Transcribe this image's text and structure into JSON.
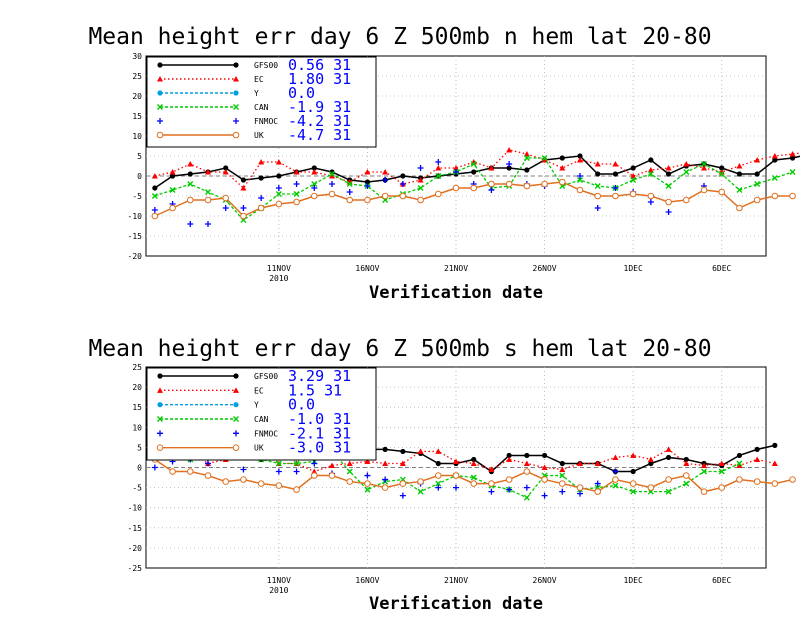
{
  "chart_data": [
    {
      "type": "line",
      "title": "Mean height err   day 6  Z 500mb  n hem  lat 20-80",
      "xlabel": "Verification date",
      "ylabel": "",
      "ylim": [
        -20,
        30
      ],
      "y_ticks": [
        -20,
        -15,
        -10,
        -5,
        0,
        5,
        10,
        15,
        20,
        25,
        30
      ],
      "x_tick_labels": [
        {
          "x": 8,
          "label": "11NOV",
          "sub": "2010"
        },
        {
          "x": 13,
          "label": "16NOV",
          "sub": ""
        },
        {
          "x": 18,
          "label": "21NOV",
          "sub": ""
        },
        {
          "x": 23,
          "label": "26NOV",
          "sub": ""
        },
        {
          "x": 28,
          "label": "1DEC",
          "sub": ""
        },
        {
          "x": 33,
          "label": "6DEC",
          "sub": ""
        }
      ],
      "grid": true,
      "legend_position": "top-left",
      "series": [
        {
          "name": "GFS00",
          "color": "#000000",
          "style": "solid",
          "marker": "dot",
          "legend_value": "0.56 31",
          "values": [
            -3,
            0,
            0.5,
            1,
            2,
            -1,
            -0.5,
            0,
            1,
            2,
            1,
            -1,
            -1.5,
            -1,
            0,
            -0.5,
            0,
            0.5,
            1,
            2,
            2,
            1.5,
            4,
            4.5,
            5,
            0.5,
            0.5,
            2,
            4,
            0.5,
            2.5,
            3,
            2,
            0.5,
            0.5,
            4,
            4.5,
            5.5
          ]
        },
        {
          "name": "EC",
          "color": "#ff0000",
          "style": "dotted",
          "marker": "triangle",
          "legend_value": "1.80 31",
          "values": [
            0,
            1,
            3,
            1,
            1,
            -3,
            3.5,
            3.5,
            1,
            1,
            0,
            -1.5,
            1,
            1,
            -2,
            -1,
            2,
            2,
            3.5,
            2,
            6.5,
            5.5,
            4,
            2,
            4,
            3,
            3,
            0,
            1.5,
            2,
            3,
            2,
            1,
            2.5,
            4,
            5,
            5.5,
            6
          ]
        },
        {
          "name": "Y",
          "color": "#00a0e0",
          "style": "dashed",
          "marker": "dot",
          "legend_value": "0.0",
          "values": []
        },
        {
          "name": "CAN",
          "color": "#00cc00",
          "style": "dashed",
          "marker": "x",
          "legend_value": "-1.9 31",
          "values": [
            -5,
            -3.5,
            -2,
            -4,
            -6,
            -11,
            -8,
            -4.5,
            -4.5,
            -2,
            0.5,
            -2,
            -2.5,
            -6,
            -4.5,
            -3,
            0,
            1,
            3,
            -3,
            -2.5,
            4.5,
            4.5,
            -2.5,
            -1,
            -2.5,
            -3,
            -1,
            0.5,
            -2.5,
            1,
            3,
            0.5,
            -3.5,
            -2,
            -0.5,
            1
          ]
        },
        {
          "name": "FNMOC",
          "color": "#0000ff",
          "style": "none",
          "marker": "plus",
          "legend_value": "-4.2 31",
          "values": [
            -8.5,
            -7,
            -12,
            -12,
            -8,
            -8,
            -5.5,
            -3,
            -2,
            -3,
            -2,
            -4,
            -2.5,
            -1,
            -2,
            2,
            3.5,
            1,
            -2,
            -3.5,
            3,
            -2,
            -2.5,
            -1.5,
            0,
            -8,
            -3,
            -4,
            -6.5,
            -9,
            -6,
            -2.5
          ]
        },
        {
          "name": "UK",
          "color": "#e07020",
          "style": "solid",
          "marker": "circle",
          "legend_value": "-4.7 31",
          "values": [
            -10,
            -8,
            -6,
            -6,
            -5.5,
            -10,
            -8,
            -7,
            -6.5,
            -5,
            -4.5,
            -6,
            -6,
            -5,
            -5,
            -6,
            -4.5,
            -3,
            -3,
            -2,
            -2,
            -2.5,
            -2,
            -1.5,
            -3.5,
            -5,
            -5,
            -4.5,
            -5,
            -6.5,
            -6,
            -3.5,
            -4,
            -8,
            -6,
            -5,
            -5
          ]
        }
      ]
    },
    {
      "type": "line",
      "title": "Mean height err   day 6  Z 500mb  s hem  lat 20-80",
      "xlabel": "Verification date",
      "ylabel": "",
      "ylim": [
        -25,
        25
      ],
      "y_ticks": [
        -25,
        -20,
        -15,
        -10,
        -5,
        0,
        5,
        10,
        15,
        20,
        25
      ],
      "x_tick_labels": [
        {
          "x": 8,
          "label": "11NOV",
          "sub": "2010"
        },
        {
          "x": 13,
          "label": "16NOV",
          "sub": ""
        },
        {
          "x": 18,
          "label": "21NOV",
          "sub": ""
        },
        {
          "x": 23,
          "label": "26NOV",
          "sub": ""
        },
        {
          "x": 28,
          "label": "1DEC",
          "sub": ""
        },
        {
          "x": 33,
          "label": "6DEC",
          "sub": ""
        }
      ],
      "grid": true,
      "legend_position": "top-left",
      "series": [
        {
          "name": "GFS00",
          "color": "#000000",
          "style": "solid",
          "marker": "dot",
          "legend_value": "3.29 31",
          "values": [
            4.5,
            6.5,
            5,
            8,
            4.5,
            3.5,
            2,
            2.5,
            5,
            6.5,
            6.5,
            6,
            4.5,
            4.5,
            4,
            3.5,
            1,
            1,
            2,
            -1,
            3,
            3,
            3,
            1,
            1,
            1,
            -1,
            -1,
            1,
            2.5,
            2,
            1,
            0.5,
            3,
            4.5,
            5.5
          ]
        },
        {
          "name": "EC",
          "color": "#ff0000",
          "style": "dotted",
          "marker": "triangle",
          "legend_value": "1.5 31",
          "values": [
            3.5,
            5.5,
            4,
            1,
            2,
            5,
            4.5,
            1,
            1,
            -1,
            0.5,
            1,
            1.5,
            1,
            1,
            4,
            4,
            1.5,
            1,
            -0.5,
            2,
            1,
            0,
            -0.5,
            1,
            1,
            2.5,
            3,
            2,
            4.5,
            1,
            0.5,
            1,
            0.5,
            2,
            1
          ]
        },
        {
          "name": "Y",
          "color": "#00a0e0",
          "style": "dashed",
          "marker": "dot",
          "legend_value": "0.0",
          "values": []
        },
        {
          "name": "CAN",
          "color": "#00cc00",
          "style": "dashed",
          "marker": "x",
          "legend_value": "-1.0 31",
          "values": [
            3,
            4,
            2,
            2.5,
            4,
            4.5,
            2,
            1,
            1,
            1.5,
            4,
            -1,
            -5.5,
            -3.5,
            -3,
            -6,
            -4,
            -2,
            -2.5,
            -4.5,
            -5.5,
            -7.5,
            -2,
            -2,
            -5.5,
            -5,
            -4.5,
            -6,
            -6,
            -6,
            -4,
            -1,
            -1,
            1
          ]
        },
        {
          "name": "FNMOC",
          "color": "#0000ff",
          "style": "none",
          "marker": "plus",
          "legend_value": "-2.1 31",
          "values": [
            0,
            1.5,
            2,
            1,
            5.5,
            -0.5,
            2.5,
            -1,
            -1,
            1,
            -1.5,
            2.5,
            -2,
            -3,
            -7,
            -4,
            -5,
            -5,
            -4,
            -6,
            -5.5,
            -5,
            -7,
            -6,
            -6.5,
            -4,
            -1
          ]
        },
        {
          "name": "UK",
          "color": "#e07020",
          "style": "solid",
          "marker": "circle",
          "legend_value": "-3.0 31",
          "values": [
            2,
            -1,
            -1,
            -2,
            -3.5,
            -3,
            -4,
            -4.5,
            -5.5,
            -2,
            -2,
            -3.5,
            -4,
            -5,
            -4,
            -3.5,
            -2,
            -2,
            -4,
            -4,
            -3,
            -1,
            -3,
            -4,
            -5,
            -6,
            -3,
            -4,
            -5,
            -3,
            -2,
            -6,
            -5,
            -3,
            -3.5,
            -4,
            -3
          ]
        }
      ]
    }
  ]
}
